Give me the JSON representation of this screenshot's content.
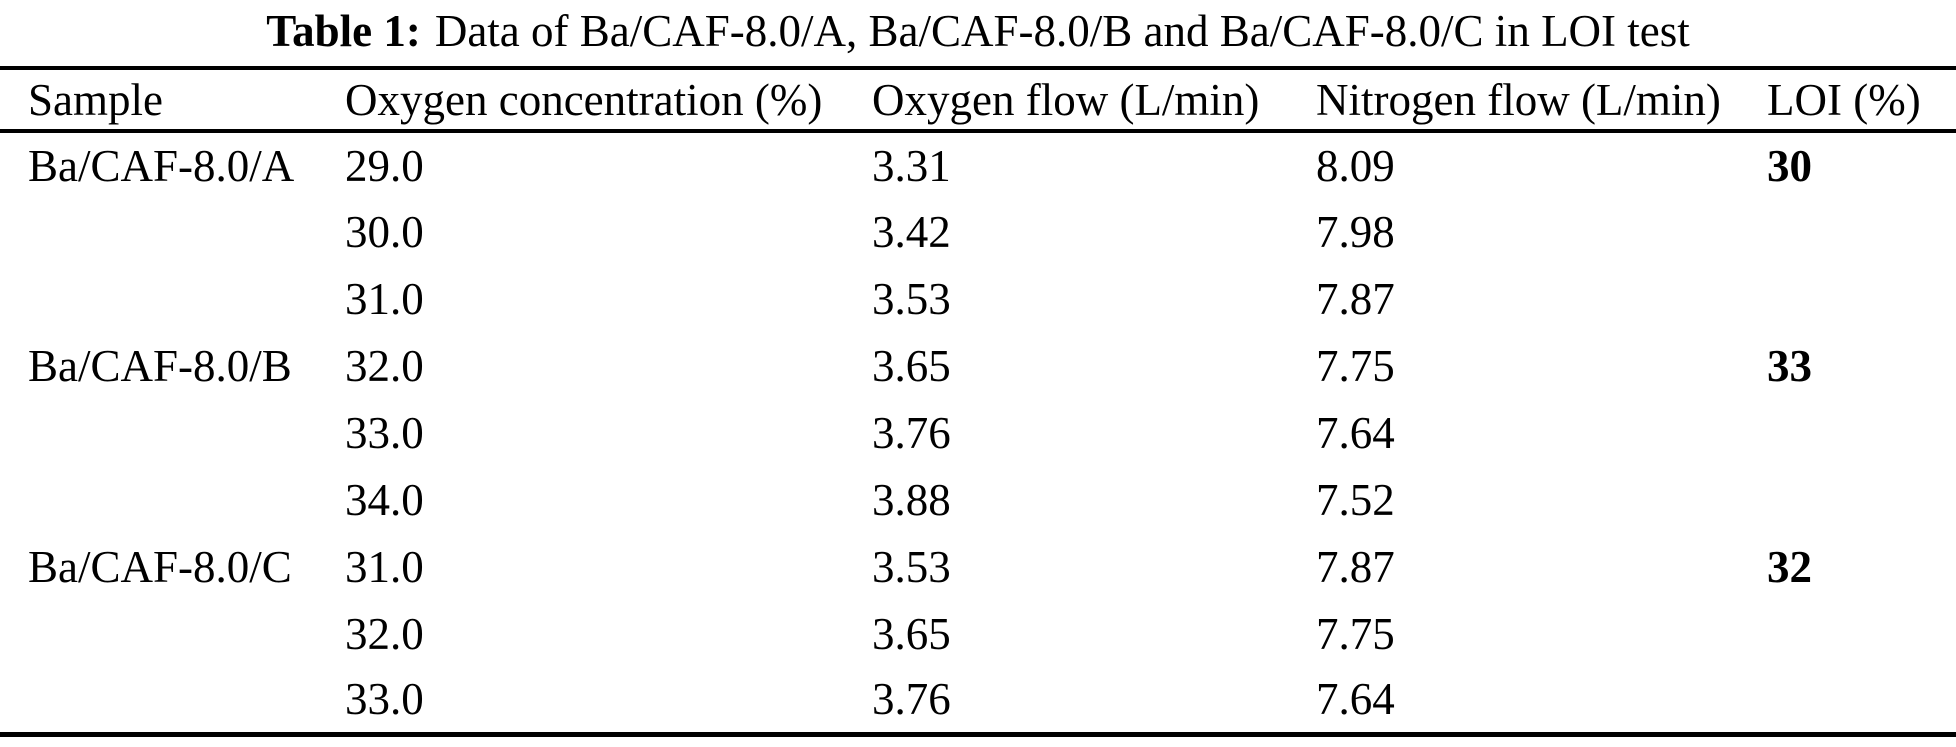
{
  "table": {
    "title_label": "Table 1:",
    "title_text": "Data of Ba/CAF-8.0/A, Ba/CAF-8.0/B and Ba/CAF-8.0/C in LOI test",
    "columns": [
      "Sample",
      "Oxygen concentration (%)",
      "Oxygen flow (L/min)",
      "Nitrogen flow (L/min)",
      "LOI (%)"
    ],
    "rows": [
      {
        "sample": "Ba/CAF-8.0/A",
        "oxygen_concentration": "29.0",
        "oxygen_flow": "3.31",
        "nitrogen_flow": "8.09",
        "loi": "30"
      },
      {
        "sample": "",
        "oxygen_concentration": "30.0",
        "oxygen_flow": "3.42",
        "nitrogen_flow": "7.98",
        "loi": ""
      },
      {
        "sample": "",
        "oxygen_concentration": "31.0",
        "oxygen_flow": "3.53",
        "nitrogen_flow": "7.87",
        "loi": ""
      },
      {
        "sample": "Ba/CAF-8.0/B",
        "oxygen_concentration": "32.0",
        "oxygen_flow": "3.65",
        "nitrogen_flow": "7.75",
        "loi": "33"
      },
      {
        "sample": "",
        "oxygen_concentration": "33.0",
        "oxygen_flow": "3.76",
        "nitrogen_flow": "7.64",
        "loi": ""
      },
      {
        "sample": "",
        "oxygen_concentration": "34.0",
        "oxygen_flow": "3.88",
        "nitrogen_flow": "7.52",
        "loi": ""
      },
      {
        "sample": "Ba/CAF-8.0/C",
        "oxygen_concentration": "31.0",
        "oxygen_flow": "3.53",
        "nitrogen_flow": "7.87",
        "loi": "32"
      },
      {
        "sample": "",
        "oxygen_concentration": "32.0",
        "oxygen_flow": "3.65",
        "nitrogen_flow": "7.75",
        "loi": ""
      },
      {
        "sample": "",
        "oxygen_concentration": "33.0",
        "oxygen_flow": "3.76",
        "nitrogen_flow": "7.64",
        "loi": ""
      }
    ],
    "text_color": "#000000",
    "background_color": "#ffffff"
  }
}
